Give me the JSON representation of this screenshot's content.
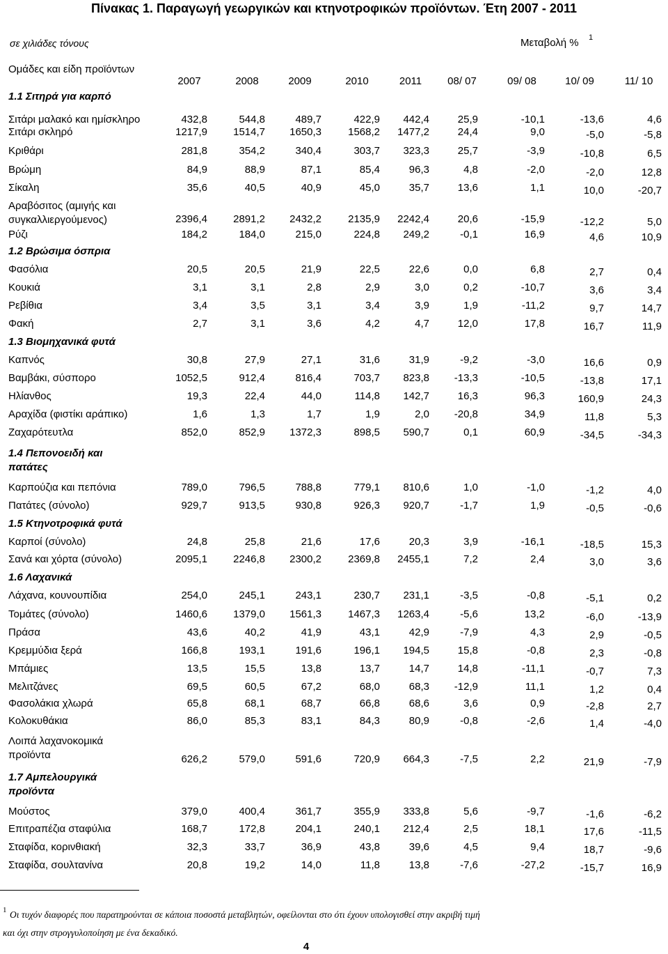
{
  "header": {
    "title": "Πίνακας 1. Παραγωγή γεωργικών και κτηνοτροφικών προϊόντων. Έτη 2007 - 2011",
    "unit": "σε χιλιάδες τόνους",
    "change": "Μεταβολή %",
    "change_note": "1"
  },
  "table": {
    "group_header": "Ομάδες και είδη προϊόντων",
    "columns": [
      "2007",
      "2008",
      "2009",
      "2010",
      "2011",
      "08/ 07",
      "09/ 08",
      "10/ 09",
      "11/ 10"
    ],
    "sections": [
      {
        "title": "1.1 Σιτηρά για καρπό",
        "rows": [
          {
            "label": "Σιτάρι μαλακό και ημίσκληρο",
            "values": [
              "432,8",
              "544,8",
              "489,7",
              "422,9",
              "442,4",
              "25,9",
              "-10,1",
              "-13,6",
              "4,6"
            ]
          },
          {
            "label": "Σιτάρι σκληρό",
            "values": [
              "1217,9",
              "1514,7",
              "1650,3",
              "1568,2",
              "1477,2",
              "24,4",
              "9,0",
              "-5,0",
              "-5,8"
            ]
          },
          {
            "label": "Κριθάρι",
            "values": [
              "281,8",
              "354,2",
              "340,4",
              "303,7",
              "323,3",
              "25,7",
              "-3,9",
              "-10,8",
              "6,5"
            ]
          },
          {
            "label": "Βρώμη",
            "values": [
              "84,9",
              "88,9",
              "87,1",
              "85,4",
              "96,3",
              "4,8",
              "-2,0",
              "-2,0",
              "12,8"
            ]
          },
          {
            "label": "Σίκαλη",
            "values": [
              "35,6",
              "40,5",
              "40,9",
              "45,0",
              "35,7",
              "13,6",
              "1,1",
              "10,0",
              "-20,7"
            ]
          },
          {
            "label": "Αραβόσιτος (αμιγής και\nσυγκαλλιεργούμενος)",
            "values": [
              "2396,4",
              "2891,2",
              "2432,2",
              "2135,9",
              "2242,4",
              "20,6",
              "-15,9",
              "-12,2",
              "5,0"
            ]
          },
          {
            "label": "Ρύζι",
            "values": [
              "184,2",
              "184,0",
              "215,0",
              "224,8",
              "249,2",
              "-0,1",
              "16,9",
              "4,6",
              "10,9"
            ]
          }
        ]
      },
      {
        "title": "1.2 Βρώσιμα όσπρια",
        "rows": [
          {
            "label": "Φασόλια",
            "values": [
              "20,5",
              "20,5",
              "21,9",
              "22,5",
              "22,6",
              "0,0",
              "6,8",
              "2,7",
              "0,4"
            ]
          },
          {
            "label": "Κουκιά",
            "values": [
              "3,1",
              "3,1",
              "2,8",
              "2,9",
              "3,0",
              "0,2",
              "-10,7",
              "3,6",
              "3,4"
            ]
          },
          {
            "label": "Ρεβίθια",
            "values": [
              "3,4",
              "3,5",
              "3,1",
              "3,4",
              "3,9",
              "1,9",
              "-11,2",
              "9,7",
              "14,7"
            ]
          },
          {
            "label": "Φακή",
            "values": [
              "2,7",
              "3,1",
              "3,6",
              "4,2",
              "4,7",
              "12,0",
              "17,8",
              "16,7",
              "11,9"
            ]
          }
        ]
      },
      {
        "title": "1.3 Βιομηχανικά φυτά",
        "rows": [
          {
            "label": "Καπνός",
            "values": [
              "30,8",
              "27,9",
              "27,1",
              "31,6",
              "31,9",
              "-9,2",
              "-3,0",
              "16,6",
              "0,9"
            ]
          },
          {
            "label": "Βαμβάκι, σύσπορο",
            "values": [
              "1052,5",
              "912,4",
              "816,4",
              "703,7",
              "823,8",
              "-13,3",
              "-10,5",
              "-13,8",
              "17,1"
            ]
          },
          {
            "label": "Ηλίανθος",
            "values": [
              "19,3",
              "22,4",
              "44,0",
              "114,8",
              "142,7",
              "16,3",
              "96,3",
              "160,9",
              "24,3"
            ]
          },
          {
            "label": "Αραχίδα (φιστίκι αράπικο)",
            "values": [
              "1,6",
              "1,3",
              "1,7",
              "1,9",
              "2,0",
              "-20,8",
              "34,9",
              "11,8",
              "5,3"
            ]
          },
          {
            "label": "Ζαχαρότευτλα",
            "values": [
              "852,0",
              "852,9",
              "1372,3",
              "898,5",
              "590,7",
              "0,1",
              "60,9",
              "-34,5",
              "-34,3"
            ]
          }
        ]
      },
      {
        "title": "1.4 Πεπονοειδή και\nπατάτες",
        "rows": [
          {
            "label": "Καρπούζια και πεπόνια",
            "values": [
              "789,0",
              "796,5",
              "788,8",
              "779,1",
              "810,6",
              "1,0",
              "-1,0",
              "-1,2",
              "4,0"
            ]
          },
          {
            "label": "Πατάτες (σύνολο)",
            "values": [
              "929,7",
              "913,5",
              "930,8",
              "926,3",
              "920,7",
              "-1,7",
              "1,9",
              "-0,5",
              "-0,6"
            ]
          }
        ]
      },
      {
        "title": "1.5 Κτηνοτροφικά φυτά",
        "rows": [
          {
            "label": "Καρποί (σύνολο)",
            "values": [
              "24,8",
              "25,8",
              "21,6",
              "17,6",
              "20,3",
              "3,9",
              "-16,1",
              "-18,5",
              "15,3"
            ]
          },
          {
            "label": "Σανά και χόρτα (σύνολο)",
            "values": [
              "2095,1",
              "2246,8",
              "2300,2",
              "2369,8",
              "2455,1",
              "7,2",
              "2,4",
              "3,0",
              "3,6"
            ]
          }
        ]
      },
      {
        "title": "1.6 Λαχανικά",
        "rows": [
          {
            "label": "Λάχανα, κουνουπίδια",
            "values": [
              "254,0",
              "245,1",
              "243,1",
              "230,7",
              "231,1",
              "-3,5",
              "-0,8",
              "-5,1",
              "0,2"
            ]
          },
          {
            "label": "Τομάτες (σύνολο)",
            "values": [
              "1460,6",
              "1379,0",
              "1561,3",
              "1467,3",
              "1263,4",
              "-5,6",
              "13,2",
              "-6,0",
              "-13,9"
            ]
          },
          {
            "label": "Πράσα",
            "values": [
              "43,6",
              "40,2",
              "41,9",
              "43,1",
              "42,9",
              "-7,9",
              "4,3",
              "2,9",
              "-0,5"
            ]
          },
          {
            "label": "Κρεμμύδια ξερά",
            "values": [
              "166,8",
              "193,1",
              "191,6",
              "196,1",
              "194,5",
              "15,8",
              "-0,8",
              "2,3",
              "-0,8"
            ]
          },
          {
            "label": "Μπάμιες",
            "values": [
              "13,5",
              "15,5",
              "13,8",
              "13,7",
              "14,7",
              "14,8",
              "-11,1",
              "-0,7",
              "7,3"
            ]
          },
          {
            "label": "Μελιτζάνες",
            "values": [
              "69,5",
              "60,5",
              "67,2",
              "68,0",
              "68,3",
              "-12,9",
              "11,1",
              "1,2",
              "0,4"
            ]
          },
          {
            "label": "Φασολάκια χλωρά",
            "values": [
              "65,8",
              "68,1",
              "68,7",
              "66,8",
              "68,6",
              "3,6",
              "0,9",
              "-2,8",
              "2,7"
            ]
          },
          {
            "label": "Κολοκυθάκια",
            "values": [
              "86,0",
              "85,3",
              "83,1",
              "84,3",
              "80,9",
              "-0,8",
              "-2,6",
              "1,4",
              "-4,0"
            ]
          },
          {
            "label": "Λοιπά λαχανοκομικά\nπροϊόντα",
            "values": [
              "626,2",
              "579,0",
              "591,6",
              "720,9",
              "664,3",
              "-7,5",
              "2,2",
              "21,9",
              "-7,9"
            ]
          }
        ]
      },
      {
        "title": "1.7 Αμπελουργικά\nπροϊόντα",
        "rows": [
          {
            "label": "Μούστος",
            "values": [
              "379,0",
              "400,4",
              "361,7",
              "355,9",
              "333,8",
              "5,6",
              "-9,7",
              "-1,6",
              "-6,2"
            ]
          },
          {
            "label": "Επιτραπέζια σταφύλια",
            "values": [
              "168,7",
              "172,8",
              "204,1",
              "240,1",
              "212,4",
              "2,5",
              "18,1",
              "17,6",
              "-11,5"
            ]
          },
          {
            "label": "Σταφίδα, κορινθιακή",
            "values": [
              "32,3",
              "33,7",
              "36,9",
              "43,8",
              "39,6",
              "4,5",
              "9,4",
              "18,7",
              "-9,6"
            ]
          },
          {
            "label": "Σταφίδα, σουλτανίνα",
            "values": [
              "20,8",
              "19,2",
              "14,0",
              "11,8",
              "13,8",
              "-7,6",
              "-27,2",
              "-15,7",
              "16,9"
            ]
          }
        ]
      }
    ]
  },
  "footnote": {
    "mark": "1",
    "text": "Οι τυχόν διαφορές που παρατηρούνται σε κάποια ποσοστά μεταβλητών, οφείλονται στο ότι έχουν υπολογισθεί στην ακριβή τιμή\nκαι όχι στην στρογγυλοποίηση με ένα δεκαδικό."
  },
  "page_number": "4"
}
